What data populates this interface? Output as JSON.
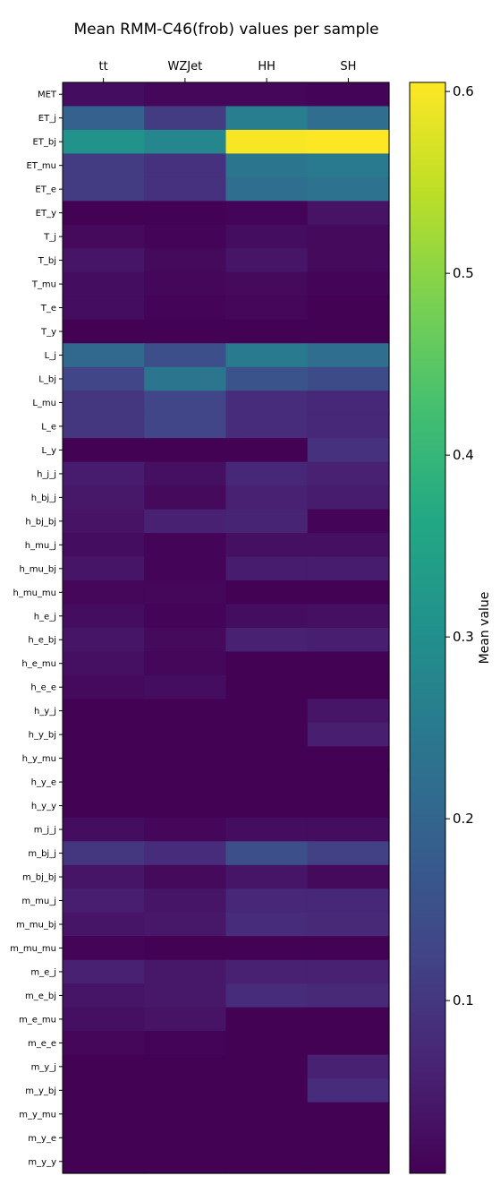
{
  "chart_data": {
    "type": "heatmap",
    "title": "Mean RMM-C46(frob) values per sample",
    "colorbar_label": "Mean value",
    "colormap": "viridis",
    "vmin": 0.005,
    "vmax": 0.605,
    "colorbar_ticks": [
      0.1,
      0.2,
      0.3,
      0.4,
      0.5,
      0.6
    ],
    "x_categories": [
      "tt",
      "WZJet",
      "HH",
      "SH"
    ],
    "y_categories": [
      "MET",
      "ET_j",
      "ET_bj",
      "ET_mu",
      "ET_e",
      "ET_y",
      "T_j",
      "T_bj",
      "T_mu",
      "T_e",
      "T_y",
      "L_j",
      "L_bj",
      "L_mu",
      "L_e",
      "L_y",
      "h_j_j",
      "h_bj_j",
      "h_bj_bj",
      "h_mu_j",
      "h_mu_bj",
      "h_mu_mu",
      "h_e_j",
      "h_e_bj",
      "h_e_mu",
      "h_e_e",
      "h_y_j",
      "h_y_bj",
      "h_y_mu",
      "h_y_e",
      "h_y_y",
      "m_j_j",
      "m_bj_j",
      "m_bj_bj",
      "m_mu_j",
      "m_mu_bj",
      "m_mu_mu",
      "m_e_j",
      "m_e_bj",
      "m_e_mu",
      "m_e_e",
      "m_y_j",
      "m_y_bj",
      "m_y_mu",
      "m_y_e",
      "m_y_y"
    ],
    "values": [
      [
        0.025,
        0.015,
        0.015,
        0.01
      ],
      [
        0.19,
        0.11,
        0.26,
        0.22
      ],
      [
        0.31,
        0.28,
        0.6,
        0.605
      ],
      [
        0.11,
        0.09,
        0.24,
        0.25
      ],
      [
        0.11,
        0.09,
        0.22,
        0.23
      ],
      [
        0.006,
        0.006,
        0.01,
        0.035
      ],
      [
        0.02,
        0.01,
        0.025,
        0.02
      ],
      [
        0.04,
        0.02,
        0.04,
        0.02
      ],
      [
        0.025,
        0.015,
        0.02,
        0.01
      ],
      [
        0.025,
        0.01,
        0.015,
        0.006
      ],
      [
        0.006,
        0.006,
        0.006,
        0.006
      ],
      [
        0.21,
        0.15,
        0.25,
        0.22
      ],
      [
        0.13,
        0.24,
        0.16,
        0.14
      ],
      [
        0.1,
        0.13,
        0.08,
        0.07
      ],
      [
        0.1,
        0.13,
        0.08,
        0.07
      ],
      [
        0.006,
        0.006,
        0.006,
        0.09
      ],
      [
        0.05,
        0.03,
        0.07,
        0.06
      ],
      [
        0.045,
        0.02,
        0.06,
        0.05
      ],
      [
        0.035,
        0.06,
        0.065,
        0.01
      ],
      [
        0.025,
        0.01,
        0.03,
        0.03
      ],
      [
        0.04,
        0.01,
        0.05,
        0.05
      ],
      [
        0.015,
        0.015,
        0.006,
        0.006
      ],
      [
        0.025,
        0.01,
        0.025,
        0.03
      ],
      [
        0.04,
        0.02,
        0.06,
        0.055
      ],
      [
        0.03,
        0.015,
        0.006,
        0.006
      ],
      [
        0.02,
        0.025,
        0.006,
        0.006
      ],
      [
        0.006,
        0.006,
        0.006,
        0.04
      ],
      [
        0.006,
        0.006,
        0.006,
        0.055
      ],
      [
        0.006,
        0.006,
        0.006,
        0.006
      ],
      [
        0.006,
        0.006,
        0.006,
        0.006
      ],
      [
        0.006,
        0.006,
        0.006,
        0.006
      ],
      [
        0.025,
        0.015,
        0.025,
        0.025
      ],
      [
        0.1,
        0.08,
        0.15,
        0.12
      ],
      [
        0.04,
        0.02,
        0.04,
        0.02
      ],
      [
        0.055,
        0.04,
        0.07,
        0.07
      ],
      [
        0.04,
        0.045,
        0.08,
        0.075
      ],
      [
        0.01,
        0.006,
        0.006,
        0.006
      ],
      [
        0.06,
        0.045,
        0.06,
        0.06
      ],
      [
        0.04,
        0.045,
        0.08,
        0.075
      ],
      [
        0.03,
        0.035,
        0.006,
        0.006
      ],
      [
        0.015,
        0.01,
        0.006,
        0.006
      ],
      [
        0.006,
        0.006,
        0.006,
        0.06
      ],
      [
        0.006,
        0.006,
        0.006,
        0.08
      ],
      [
        0.006,
        0.006,
        0.006,
        0.006
      ],
      [
        0.006,
        0.006,
        0.006,
        0.006
      ],
      [
        0.006,
        0.006,
        0.006,
        0.006
      ]
    ]
  }
}
